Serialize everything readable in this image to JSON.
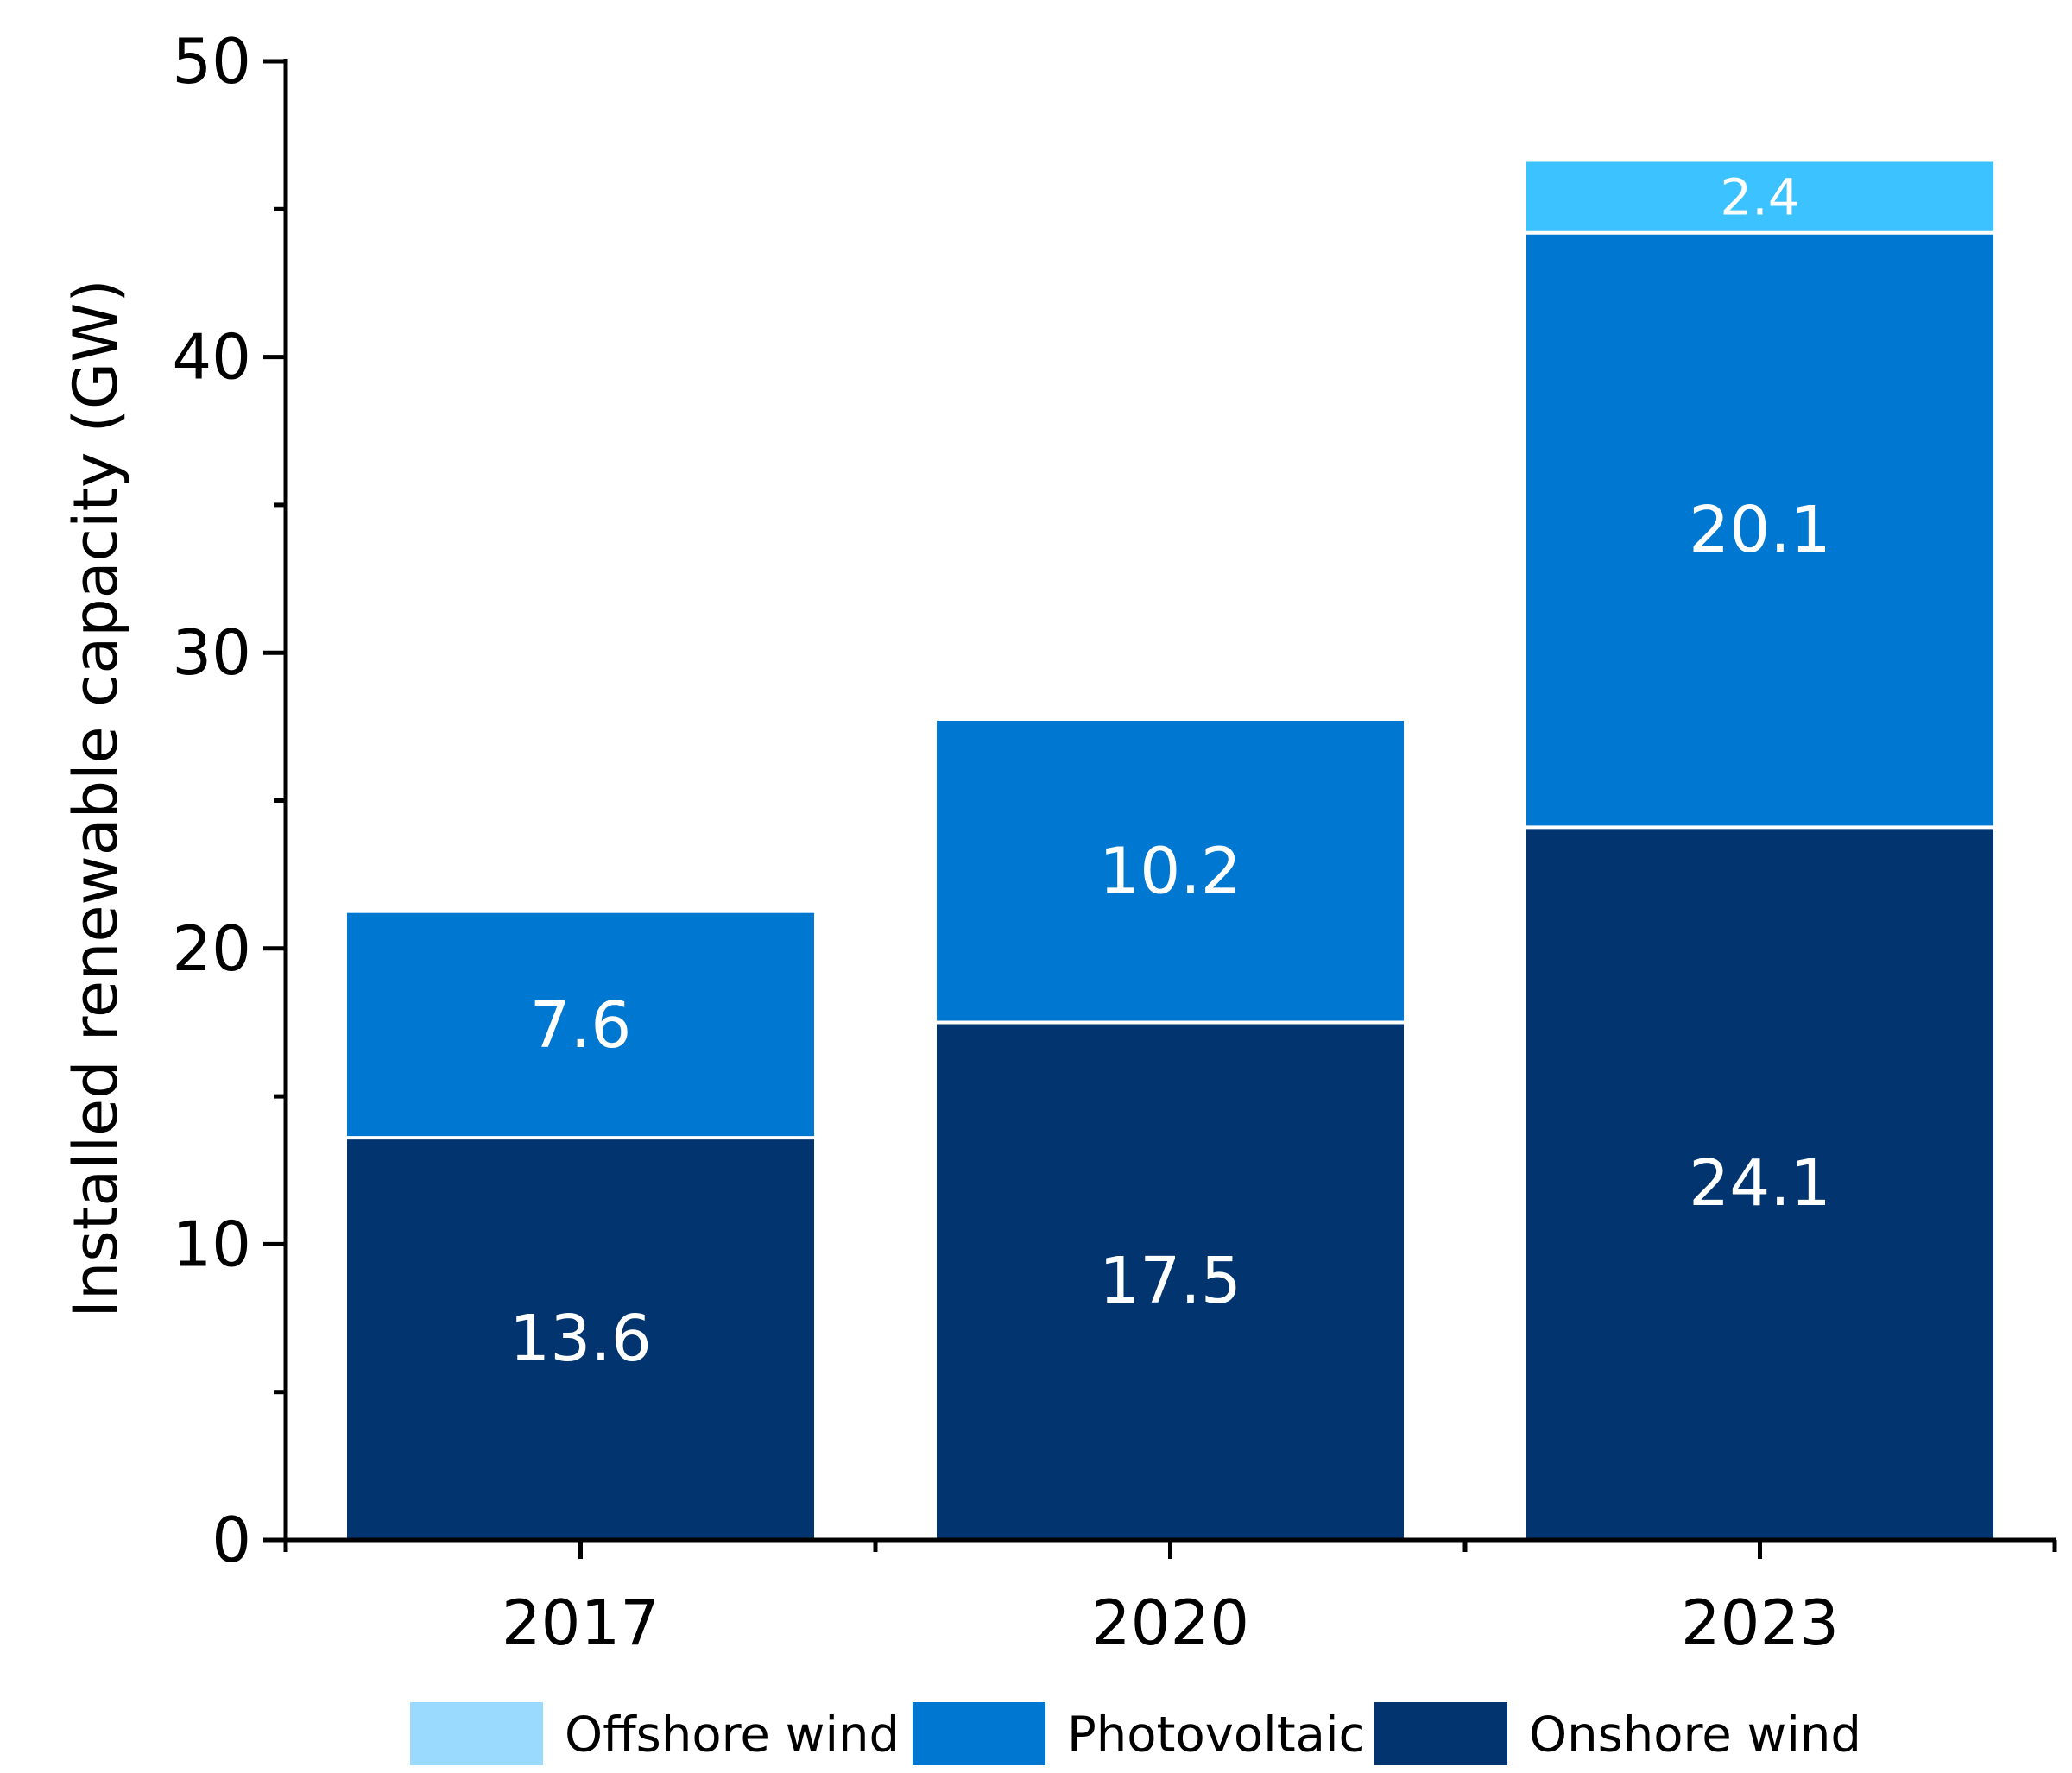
{
  "chart_data": {
    "type": "bar",
    "stacked": true,
    "title": "",
    "xlabel": "",
    "ylabel": "Installed renewable capacity (GW)",
    "ylim": [
      0,
      50
    ],
    "yticks": [
      0,
      10,
      20,
      30,
      40,
      50
    ],
    "yticks_minor_step": 5,
    "grid": false,
    "legend_position": "bottom",
    "categories": [
      "2017",
      "2020",
      "2023"
    ],
    "series": [
      {
        "name": "Onshore wind",
        "values": [
          13.6,
          17.5,
          24.1
        ],
        "labels": [
          "13.6",
          "17.5",
          "24.1"
        ],
        "color": "#02356F"
      },
      {
        "name": "Photovoltaic",
        "values": [
          7.6,
          10.2,
          20.1
        ],
        "labels": [
          "7.6",
          "10.2",
          "20.1"
        ],
        "color": "#0077D1"
      },
      {
        "name": "Offshore wind",
        "values": [
          0,
          0,
          2.4
        ],
        "labels": [
          "",
          "",
          "2.4"
        ],
        "color": "#3BC2FF",
        "legend_color": "#9ADAFF"
      }
    ],
    "legend_order": [
      "Offshore wind",
      "Photovoltaic",
      "Onshore wind"
    ]
  }
}
